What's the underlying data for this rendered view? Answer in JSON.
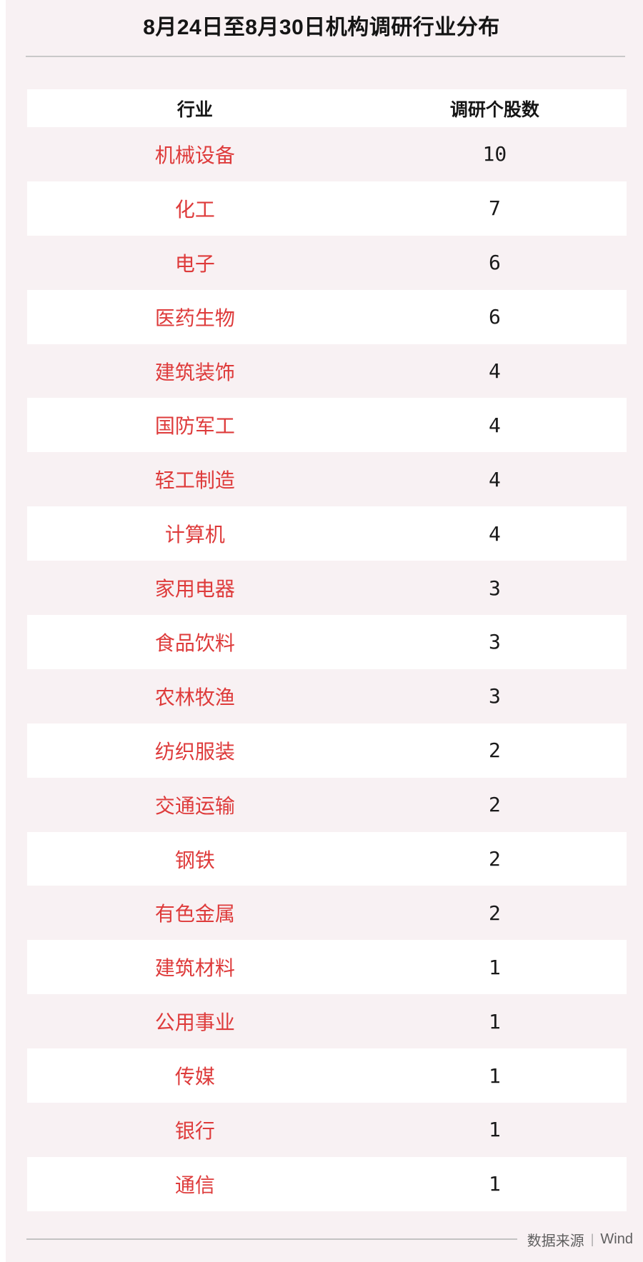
{
  "title": "8月24日至8月30日机构调研行业分布",
  "table": {
    "headers": [
      "行业",
      "调研个股数"
    ],
    "rows": [
      {
        "industry": "机械设备",
        "count": 10
      },
      {
        "industry": "化工",
        "count": 7
      },
      {
        "industry": "电子",
        "count": 6
      },
      {
        "industry": "医药生物",
        "count": 6
      },
      {
        "industry": "建筑装饰",
        "count": 4
      },
      {
        "industry": "国防军工",
        "count": 4
      },
      {
        "industry": "轻工制造",
        "count": 4
      },
      {
        "industry": "计算机",
        "count": 4
      },
      {
        "industry": "家用电器",
        "count": 3
      },
      {
        "industry": "食品饮料",
        "count": 3
      },
      {
        "industry": "农林牧渔",
        "count": 3
      },
      {
        "industry": "纺织服装",
        "count": 2
      },
      {
        "industry": "交通运输",
        "count": 2
      },
      {
        "industry": "钢铁",
        "count": 2
      },
      {
        "industry": "有色金属",
        "count": 2
      },
      {
        "industry": "建筑材料",
        "count": 1
      },
      {
        "industry": "公用事业",
        "count": 1
      },
      {
        "industry": "传媒",
        "count": 1
      },
      {
        "industry": "银行",
        "count": 1
      },
      {
        "industry": "通信",
        "count": 1
      }
    ]
  },
  "footer": {
    "source_label": "数据来源",
    "separator": "|",
    "source_name": "Wind"
  },
  "colors": {
    "page_background": "#f8f1f3",
    "row_stripe_white": "#ffffff",
    "industry_text_red": "#de3b3b",
    "number_text": "#1a1a1a",
    "divider_gray": "#c9c9c9",
    "footer_text_gray": "#5f5f5f"
  },
  "chart_data": {
    "type": "table",
    "title": "8月24日至8月30日机构调研行业分布",
    "columns": [
      "行业",
      "调研个股数"
    ],
    "categories": [
      "机械设备",
      "化工",
      "电子",
      "医药生物",
      "建筑装饰",
      "国防军工",
      "轻工制造",
      "计算机",
      "家用电器",
      "食品饮料",
      "农林牧渔",
      "纺织服装",
      "交通运输",
      "钢铁",
      "有色金属",
      "建筑材料",
      "公用事业",
      "传媒",
      "银行",
      "通信"
    ],
    "values": [
      10,
      7,
      6,
      6,
      4,
      4,
      4,
      4,
      3,
      3,
      3,
      2,
      2,
      2,
      2,
      1,
      1,
      1,
      1,
      1
    ],
    "source": "Wind",
    "layout_hints": {
      "striped_rows": true,
      "values_alignment": "center",
      "grid": false
    }
  }
}
